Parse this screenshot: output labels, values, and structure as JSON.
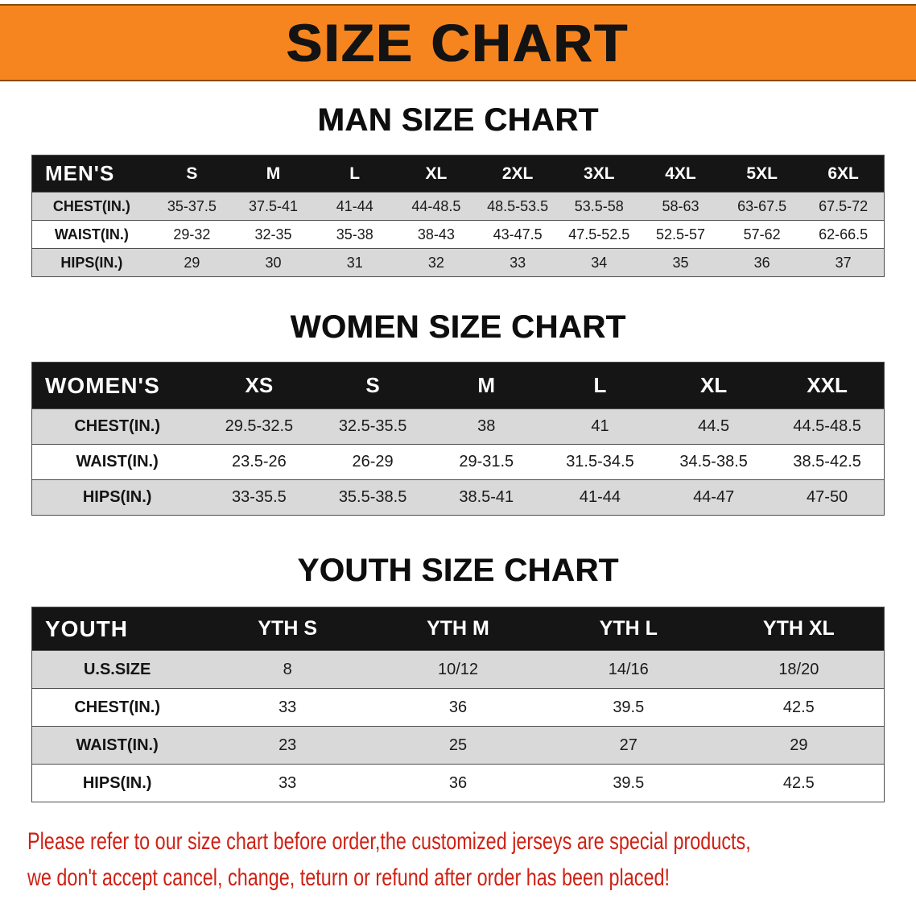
{
  "banner": {
    "title": "SIZE CHART",
    "bg_color": "#f6851f",
    "text_color": "#131313"
  },
  "sections": [
    {
      "heading": "MAN SIZE CHART",
      "table": {
        "header": [
          "MEN'S",
          "S",
          "M",
          "L",
          "XL",
          "2XL",
          "3XL",
          "4XL",
          "5XL",
          "6XL"
        ],
        "rows": [
          {
            "label": "CHEST(IN.)",
            "values": [
              "35-37.5",
              "37.5-41",
              "41-44",
              "44-48.5",
              "48.5-53.5",
              "53.5-58",
              "58-63",
              "63-67.5",
              "67.5-72"
            ]
          },
          {
            "label": "WAIST(IN.)",
            "values": [
              "29-32",
              "32-35",
              "35-38",
              "38-43",
              "43-47.5",
              "47.5-52.5",
              "52.5-57",
              "57-62",
              "62-66.5"
            ]
          },
          {
            "label": "HIPS(IN.)",
            "values": [
              "29",
              "30",
              "31",
              "32",
              "33",
              "34",
              "35",
              "36",
              "37"
            ]
          }
        ]
      }
    },
    {
      "heading": "WOMEN SIZE CHART",
      "table": {
        "header": [
          "WOMEN'S",
          "XS",
          "S",
          "M",
          "L",
          "XL",
          "XXL"
        ],
        "rows": [
          {
            "label": "CHEST(IN.)",
            "values": [
              "29.5-32.5",
              "32.5-35.5",
              "38",
              "41",
              "44.5",
              "44.5-48.5"
            ]
          },
          {
            "label": "WAIST(IN.)",
            "values": [
              "23.5-26",
              "26-29",
              "29-31.5",
              "31.5-34.5",
              "34.5-38.5",
              "38.5-42.5"
            ]
          },
          {
            "label": "HIPS(IN.)",
            "values": [
              "33-35.5",
              "35.5-38.5",
              "38.5-41",
              "41-44",
              "44-47",
              "47-50"
            ]
          }
        ]
      }
    },
    {
      "heading": "YOUTH SIZE CHART",
      "table": {
        "header": [
          "YOUTH",
          "YTH S",
          "YTH M",
          "YTH L",
          "YTH XL"
        ],
        "rows": [
          {
            "label": "U.S.SIZE",
            "values": [
              "8",
              "10/12",
              "14/16",
              "18/20"
            ]
          },
          {
            "label": "CHEST(IN.)",
            "values": [
              "33",
              "36",
              "39.5",
              "42.5"
            ]
          },
          {
            "label": "WAIST(IN.)",
            "values": [
              "23",
              "25",
              "27",
              "29"
            ]
          },
          {
            "label": "HIPS(IN.)",
            "values": [
              "33",
              "36",
              "39.5",
              "42.5"
            ]
          }
        ]
      }
    }
  ],
  "footer": {
    "line1": "Please refer to our size chart before order,the customized jerseys are special products,",
    "line2": "we don't accept cancel, change, teturn or refund after order has been placed!",
    "text_color": "#ce2114"
  },
  "style_colors": {
    "table_header_bg": "#151515",
    "row_stripe_gray": "#d9d9d9",
    "border_gray": "#4d4d4d"
  }
}
